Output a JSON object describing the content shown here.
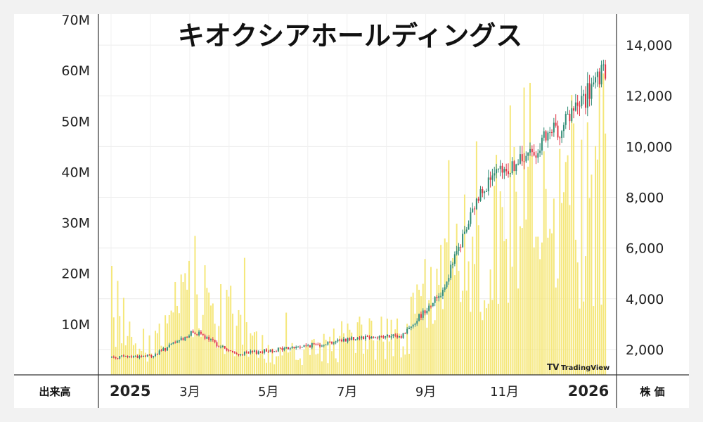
{
  "chart_data": {
    "type": "candlestick_with_volume",
    "title": "キオクシアホールディングス",
    "left_axis_label": "出来高",
    "right_axis_label": "株 価",
    "volume_ticks": [
      "10M",
      "20M",
      "30M",
      "40M",
      "50M",
      "60M",
      "70M"
    ],
    "volume_ylim": [
      0,
      70000000
    ],
    "price_ticks": [
      "2,000",
      "4,000",
      "6,000",
      "8,000",
      "10,000",
      "12,000",
      "14,000"
    ],
    "price_ylim": [
      1000,
      15000
    ],
    "x_ticks": [
      {
        "label": "2025",
        "bold": true
      },
      {
        "label": "3月",
        "bold": false
      },
      {
        "label": "5月",
        "bold": false
      },
      {
        "label": "7月",
        "bold": false
      },
      {
        "label": "9月",
        "bold": false
      },
      {
        "label": "11月",
        "bold": false
      },
      {
        "label": "2026",
        "bold": true
      }
    ],
    "watermark": "TradingView",
    "up_color": "#2e8b74",
    "down_color": "#e03040",
    "volume_color": "#f5e77a",
    "price_anchors": [
      {
        "month": "2025-01",
        "close": 1700
      },
      {
        "month": "2025-02",
        "close": 1750
      },
      {
        "month": "2025-03",
        "close": 2700
      },
      {
        "month": "2025-04",
        "close": 1800
      },
      {
        "month": "2025-05",
        "close": 2000
      },
      {
        "month": "2025-06",
        "close": 2200
      },
      {
        "month": "2025-07",
        "close": 2500
      },
      {
        "month": "2025-08",
        "close": 2500
      },
      {
        "month": "2025-09",
        "close": 4300
      },
      {
        "month": "2025-10",
        "close": 8500
      },
      {
        "month": "2025-11",
        "close": 9500
      },
      {
        "month": "2025-12",
        "close": 11000
      },
      {
        "month": "2026-01",
        "close": 13000
      }
    ],
    "volume_anchors": [
      {
        "month": "2025-01",
        "volume": 14000000
      },
      {
        "month": "2025-02",
        "volume": 5000000
      },
      {
        "month": "2025-03",
        "volume": 18000000
      },
      {
        "month": "2025-04",
        "volume": 9000000
      },
      {
        "month": "2025-05",
        "volume": 4000000
      },
      {
        "month": "2025-06",
        "volume": 5000000
      },
      {
        "month": "2025-07",
        "volume": 9000000
      },
      {
        "month": "2025-08",
        "volume": 7000000
      },
      {
        "month": "2025-09",
        "volume": 22000000
      },
      {
        "month": "2025-10",
        "volume": 25000000
      },
      {
        "month": "2025-11",
        "volume": 40000000
      },
      {
        "month": "2025-12",
        "volume": 35000000
      },
      {
        "month": "2026-01",
        "volume": 40000000
      }
    ]
  }
}
